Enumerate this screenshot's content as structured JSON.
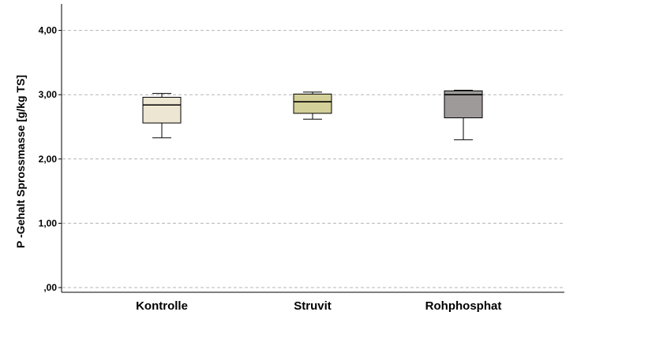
{
  "chart_data": {
    "type": "boxplot",
    "title": "",
    "xlabel": "",
    "ylabel": "P -Gehalt Sprossmasse [g/kg TS]",
    "ylim": [
      0,
      4.4
    ],
    "yticks": [
      0,
      1,
      2,
      3,
      4
    ],
    "ytick_labels": [
      ",00",
      "1,00",
      "2,00",
      "3,00",
      "4,00"
    ],
    "grid": "horizontal-dashed",
    "categories": [
      "Kontrolle",
      "Struvit",
      "Rohphosphat"
    ],
    "boxes": [
      {
        "category": "Kontrolle",
        "min": 2.33,
        "q1": 2.56,
        "median": 2.84,
        "q3": 2.96,
        "max": 3.02,
        "color": "#ede6d2"
      },
      {
        "category": "Struvit",
        "min": 2.62,
        "q1": 2.71,
        "median": 2.89,
        "q3": 3.01,
        "max": 3.04,
        "color": "#d3cf98"
      },
      {
        "category": "Rohphosphat",
        "min": 2.3,
        "q1": 2.64,
        "median": 3.0,
        "q3": 3.06,
        "max": 3.07,
        "color": "#9e9a99"
      }
    ]
  }
}
